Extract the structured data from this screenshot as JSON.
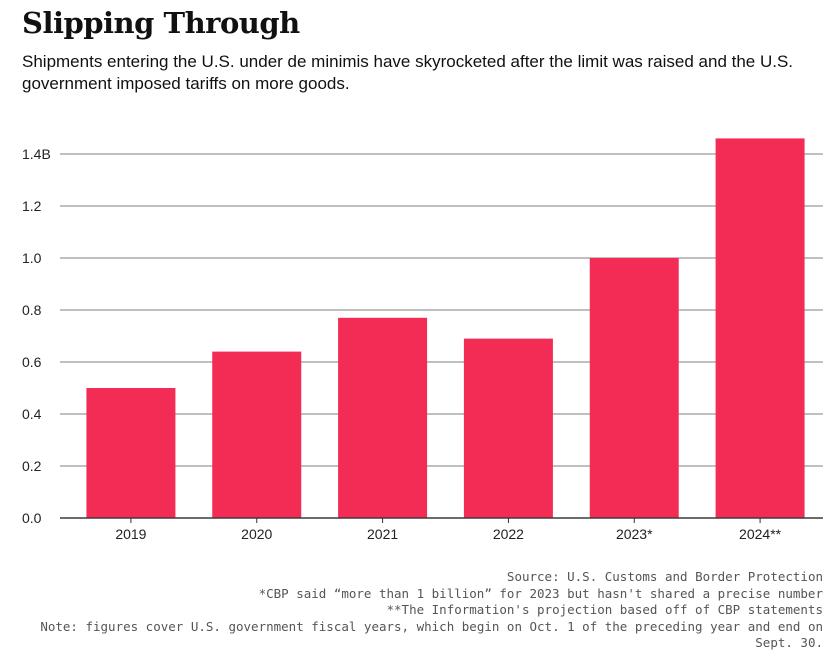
{
  "header": {
    "title": "Slipping Through",
    "subtitle": "Shipments entering the U.S. under de minimis have skyrocketed after the limit was raised and the U.S. government imposed tariffs on more goods."
  },
  "chart_data": {
    "type": "bar",
    "categories": [
      "2019",
      "2020",
      "2021",
      "2022",
      "2023*",
      "2024**"
    ],
    "values": [
      0.5,
      0.64,
      0.77,
      0.69,
      1.0,
      1.46
    ],
    "yticks": [
      0.0,
      0.2,
      0.4,
      0.6,
      0.8,
      1.0,
      1.2,
      1.4
    ],
    "ytick_labels": [
      "0.0",
      "0.2",
      "0.4",
      "0.6",
      "0.8",
      "1.0",
      "1.2",
      "1.4B"
    ],
    "ylim": [
      0,
      1.46
    ],
    "bar_color": "#f22c54",
    "grid": true
  },
  "footer": {
    "source": "Source: U.S. Customs and Border Protection",
    "note_2023": "*CBP said “more than 1 billion” for 2023 but hasn't shared a precise number",
    "note_2024": "**The Information's projection based off of CBP statements",
    "note_fiscal": "Note: figures cover U.S. government fiscal years, which begin on Oct. 1 of the preceding year and end on Sept. 30."
  }
}
